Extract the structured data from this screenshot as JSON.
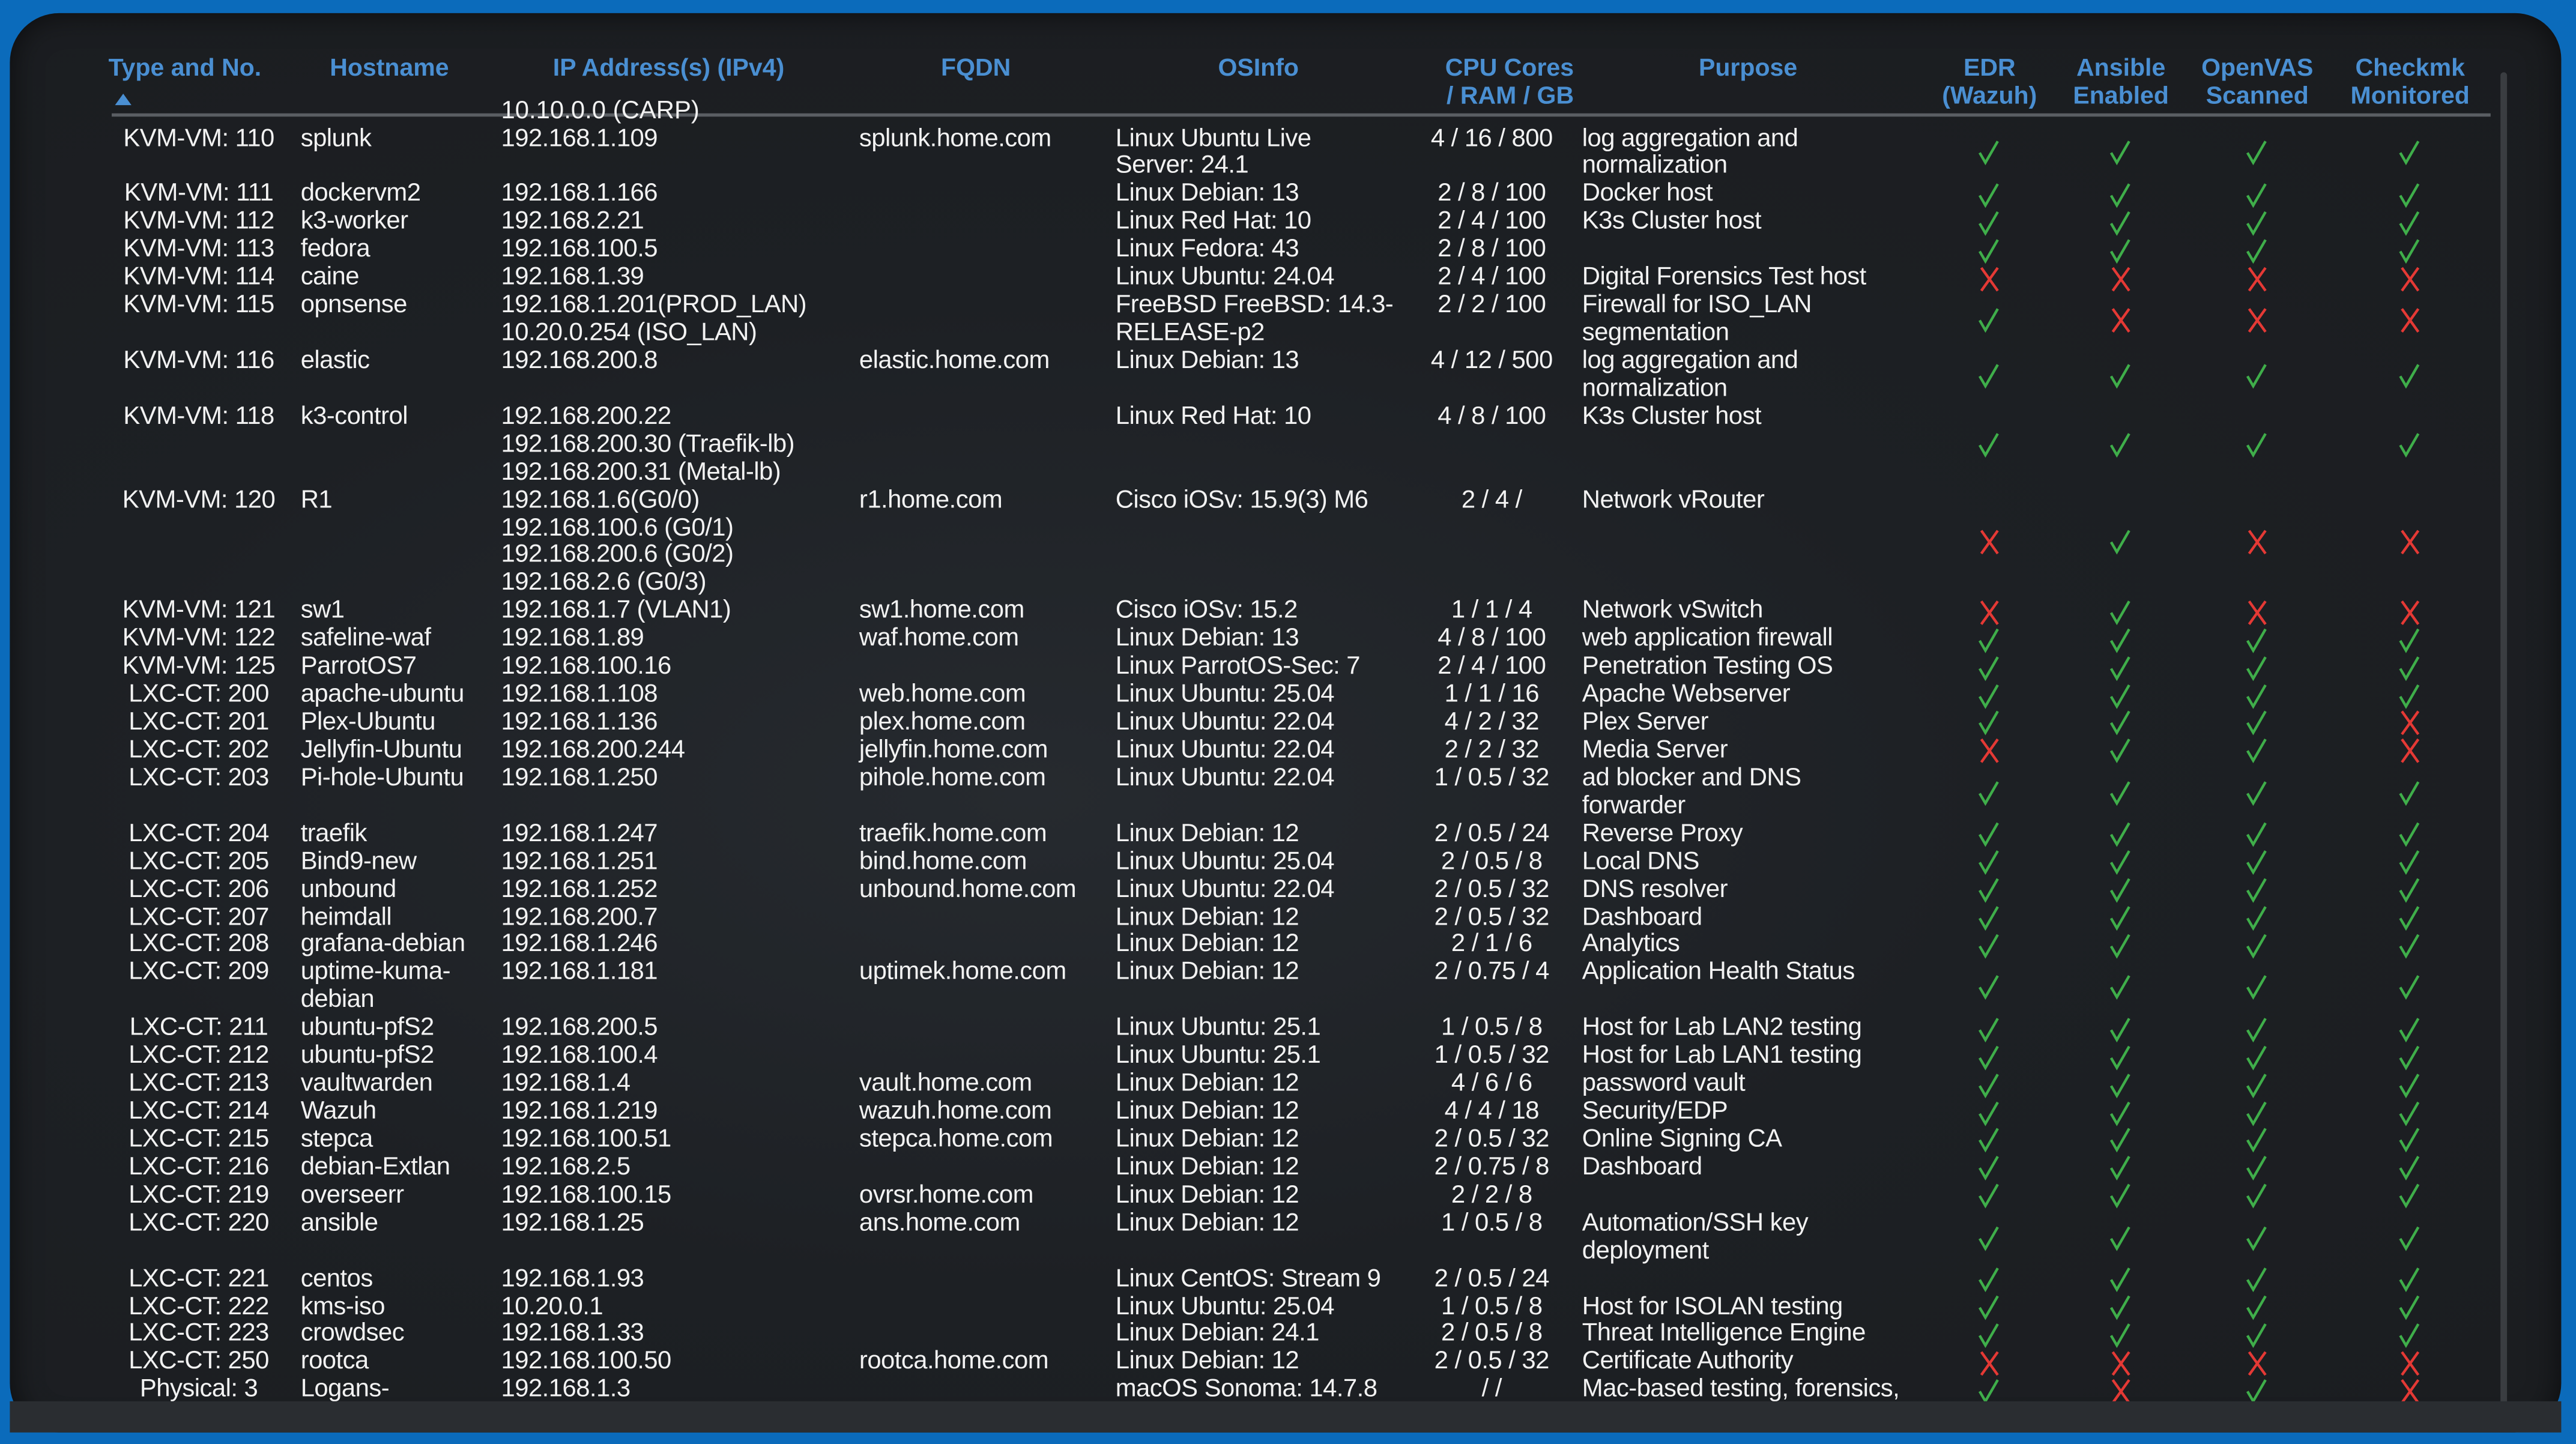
{
  "colors": {
    "frame": "#0b6bbb",
    "header_text": "#4a8fd2",
    "check": "#3fae4a",
    "cross": "#e53935",
    "cell_text": "#f2f2f2"
  },
  "icons": {
    "sort": "sort-ascending-icon",
    "yes": "check-icon",
    "no": "x-icon"
  },
  "headers": {
    "type": "Type and No.",
    "hostname": "Hostname",
    "ip": "IP Address(s) (IPv4)",
    "fqdn": "FQDN",
    "os": "OSInfo",
    "cpu": [
      "CPU Cores",
      "/ RAM / GB"
    ],
    "purpose": "Purpose",
    "edr": [
      "EDR",
      "(Wazuh)"
    ],
    "ansible": [
      "Ansible",
      "Enabled"
    ],
    "openvas": [
      "OpenVAS",
      "Scanned"
    ],
    "checkmk": [
      "Checkmk",
      "Monitored"
    ]
  },
  "clipped_top_text": "10.10.0.0 (CARP)",
  "rows": [
    {
      "type": "KVM-VM: 110",
      "host": [
        "splunk"
      ],
      "ip": [
        "192.168.1.109"
      ],
      "fqdn": "splunk.home.com",
      "os": [
        "Linux Ubuntu Live",
        "Server: 24.1"
      ],
      "cpu": "4 / 16 / 800",
      "purpose": [
        "log aggregation and",
        "normalization"
      ],
      "edr": true,
      "ansible": true,
      "openvas": true,
      "checkmk": true
    },
    {
      "type": "KVM-VM: 111",
      "host": [
        "dockervm2"
      ],
      "ip": [
        "192.168.1.166"
      ],
      "fqdn": "",
      "os": [
        "Linux Debian: 13"
      ],
      "cpu": "2 / 8 / 100",
      "purpose": [
        "Docker host"
      ],
      "edr": true,
      "ansible": true,
      "openvas": true,
      "checkmk": true
    },
    {
      "type": "KVM-VM: 112",
      "host": [
        "k3-worker"
      ],
      "ip": [
        "192.168.2.21"
      ],
      "fqdn": "",
      "os": [
        "Linux Red Hat: 10"
      ],
      "cpu": "2 / 4 / 100",
      "purpose": [
        "K3s Cluster host"
      ],
      "edr": true,
      "ansible": true,
      "openvas": true,
      "checkmk": true
    },
    {
      "type": "KVM-VM: 113",
      "host": [
        "fedora"
      ],
      "ip": [
        "192.168.100.5"
      ],
      "fqdn": "",
      "os": [
        "Linux Fedora: 43"
      ],
      "cpu": "2 / 8 / 100",
      "purpose": [
        ""
      ],
      "edr": true,
      "ansible": true,
      "openvas": true,
      "checkmk": true
    },
    {
      "type": "KVM-VM: 114",
      "host": [
        "caine"
      ],
      "ip": [
        "192.168.1.39"
      ],
      "fqdn": "",
      "os": [
        "Linux Ubuntu: 24.04"
      ],
      "cpu": "2 / 4 / 100",
      "purpose": [
        "Digital Forensics Test host"
      ],
      "edr": false,
      "ansible": false,
      "openvas": false,
      "checkmk": false
    },
    {
      "type": "KVM-VM: 115",
      "host": [
        "opnsense"
      ],
      "ip": [
        "192.168.1.201(PROD_LAN)",
        "10.20.0.254 (ISO_LAN)"
      ],
      "fqdn": "",
      "os": [
        "FreeBSD FreeBSD: 14.3-",
        "RELEASE-p2"
      ],
      "cpu": "2 / 2 / 100",
      "purpose": [
        "Firewall for ISO_LAN",
        "segmentation"
      ],
      "edr": true,
      "ansible": false,
      "openvas": false,
      "checkmk": false
    },
    {
      "type": "KVM-VM: 116",
      "host": [
        "elastic"
      ],
      "ip": [
        "192.168.200.8"
      ],
      "fqdn": "elastic.home.com",
      "os": [
        "Linux Debian: 13"
      ],
      "cpu": "4 / 12 / 500",
      "purpose": [
        "log aggregation and",
        "normalization"
      ],
      "edr": true,
      "ansible": true,
      "openvas": true,
      "checkmk": true
    },
    {
      "type": "KVM-VM: 118",
      "host": [
        "k3-control"
      ],
      "ip": [
        "192.168.200.22",
        "192.168.200.30 (Traefik-lb)",
        "192.168.200.31 (Metal-lb)"
      ],
      "fqdn": "",
      "os": [
        "Linux Red Hat: 10"
      ],
      "cpu": "4 / 8 / 100",
      "purpose": [
        "K3s Cluster host"
      ],
      "edr": true,
      "ansible": true,
      "openvas": true,
      "checkmk": true
    },
    {
      "type": "KVM-VM: 120",
      "host": [
        "R1"
      ],
      "ip": [
        "192.168.1.6(G0/0)",
        "192.168.100.6 (G0/1)",
        "192.168.200.6 (G0/2)",
        "192.168.2.6 (G0/3)"
      ],
      "fqdn": "r1.home.com",
      "os": [
        "Cisco iOSv: 15.9(3) M6"
      ],
      "cpu": "2 / 4 /",
      "purpose": [
        "Network vRouter"
      ],
      "edr": false,
      "ansible": true,
      "openvas": false,
      "checkmk": false
    },
    {
      "type": "KVM-VM: 121",
      "host": [
        "sw1"
      ],
      "ip": [
        "192.168.1.7 (VLAN1)"
      ],
      "fqdn": "sw1.home.com",
      "os": [
        "Cisco iOSv: 15.2"
      ],
      "cpu": "1 / 1 / 4",
      "purpose": [
        "Network vSwitch"
      ],
      "edr": false,
      "ansible": true,
      "openvas": false,
      "checkmk": false
    },
    {
      "type": "KVM-VM: 122",
      "host": [
        "safeline-waf"
      ],
      "ip": [
        "192.168.1.89"
      ],
      "fqdn": "waf.home.com",
      "os": [
        "Linux Debian: 13"
      ],
      "cpu": "4 / 8 / 100",
      "purpose": [
        "web application firewall"
      ],
      "edr": true,
      "ansible": true,
      "openvas": true,
      "checkmk": true
    },
    {
      "type": "KVM-VM: 125",
      "host": [
        "ParrotOS7"
      ],
      "ip": [
        "192.168.100.16"
      ],
      "fqdn": "",
      "os": [
        "Linux ParrotOS-Sec: 7"
      ],
      "cpu": "2 / 4 / 100",
      "purpose": [
        "Penetration Testing OS"
      ],
      "edr": true,
      "ansible": true,
      "openvas": true,
      "checkmk": true
    },
    {
      "type": "LXC-CT: 200",
      "host": [
        "apache-ubuntu"
      ],
      "ip": [
        "192.168.1.108"
      ],
      "fqdn": "web.home.com",
      "os": [
        "Linux Ubuntu: 25.04"
      ],
      "cpu": "1 / 1 / 16",
      "purpose": [
        "Apache Webserver"
      ],
      "edr": true,
      "ansible": true,
      "openvas": true,
      "checkmk": true
    },
    {
      "type": "LXC-CT: 201",
      "host": [
        "Plex-Ubuntu"
      ],
      "ip": [
        "192.168.1.136"
      ],
      "fqdn": "plex.home.com",
      "os": [
        "Linux Ubuntu: 22.04"
      ],
      "cpu": "4 / 2 / 32",
      "purpose": [
        "Plex Server"
      ],
      "edr": true,
      "ansible": true,
      "openvas": true,
      "checkmk": false
    },
    {
      "type": "LXC-CT: 202",
      "host": [
        "Jellyfin-Ubuntu"
      ],
      "ip": [
        "192.168.200.244"
      ],
      "fqdn": "jellyfin.home.com",
      "os": [
        "Linux Ubuntu: 22.04"
      ],
      "cpu": "2 / 2 / 32",
      "purpose": [
        "Media Server"
      ],
      "edr": false,
      "ansible": true,
      "openvas": true,
      "checkmk": false
    },
    {
      "type": "LXC-CT: 203",
      "host": [
        "Pi-hole-Ubuntu"
      ],
      "ip": [
        "192.168.1.250"
      ],
      "fqdn": "pihole.home.com",
      "os": [
        "Linux Ubuntu: 22.04"
      ],
      "cpu": "1 / 0.5 / 32",
      "purpose": [
        "ad blocker and DNS",
        "forwarder"
      ],
      "edr": true,
      "ansible": true,
      "openvas": true,
      "checkmk": true
    },
    {
      "type": "LXC-CT: 204",
      "host": [
        "traefik"
      ],
      "ip": [
        "192.168.1.247"
      ],
      "fqdn": "traefik.home.com",
      "os": [
        "Linux Debian: 12"
      ],
      "cpu": "2 / 0.5 / 24",
      "purpose": [
        "Reverse Proxy"
      ],
      "edr": true,
      "ansible": true,
      "openvas": true,
      "checkmk": true
    },
    {
      "type": "LXC-CT: 205",
      "host": [
        "Bind9-new"
      ],
      "ip": [
        "192.168.1.251"
      ],
      "fqdn": "bind.home.com",
      "os": [
        "Linux Ubuntu: 25.04"
      ],
      "cpu": "2 / 0.5 / 8",
      "purpose": [
        "Local DNS"
      ],
      "edr": true,
      "ansible": true,
      "openvas": true,
      "checkmk": true
    },
    {
      "type": "LXC-CT: 206",
      "host": [
        "unbound"
      ],
      "ip": [
        "192.168.1.252"
      ],
      "fqdn": "unbound.home.com",
      "os": [
        "Linux Ubuntu: 22.04"
      ],
      "cpu": "2 / 0.5 / 32",
      "purpose": [
        "DNS resolver"
      ],
      "edr": true,
      "ansible": true,
      "openvas": true,
      "checkmk": true
    },
    {
      "type": "LXC-CT: 207",
      "host": [
        "heimdall"
      ],
      "ip": [
        "192.168.200.7"
      ],
      "fqdn": "",
      "os": [
        "Linux Debian: 12"
      ],
      "cpu": "2 / 0.5 / 32",
      "purpose": [
        "Dashboard"
      ],
      "edr": true,
      "ansible": true,
      "openvas": true,
      "checkmk": true
    },
    {
      "type": "LXC-CT: 208",
      "host": [
        "grafana-debian"
      ],
      "ip": [
        "192.168.1.246"
      ],
      "fqdn": "",
      "os": [
        "Linux Debian: 12"
      ],
      "cpu": "2 / 1 / 6",
      "purpose": [
        "Analytics"
      ],
      "edr": true,
      "ansible": true,
      "openvas": true,
      "checkmk": true
    },
    {
      "type": "LXC-CT: 209",
      "host": [
        "uptime-kuma-",
        "debian"
      ],
      "ip": [
        "192.168.1.181"
      ],
      "fqdn": "uptimek.home.com",
      "os": [
        "Linux Debian: 12"
      ],
      "cpu": "2 / 0.75 / 4",
      "purpose": [
        "Application Health Status"
      ],
      "edr": true,
      "ansible": true,
      "openvas": true,
      "checkmk": true
    },
    {
      "type": "LXC-CT: 211",
      "host": [
        "ubuntu-pfS2"
      ],
      "ip": [
        "192.168.200.5"
      ],
      "fqdn": "",
      "os": [
        "Linux Ubuntu: 25.1"
      ],
      "cpu": "1 / 0.5 / 8",
      "purpose": [
        "Host for Lab LAN2 testing"
      ],
      "edr": true,
      "ansible": true,
      "openvas": true,
      "checkmk": true
    },
    {
      "type": "LXC-CT: 212",
      "host": [
        "ubuntu-pfS2"
      ],
      "ip": [
        "192.168.100.4"
      ],
      "fqdn": "",
      "os": [
        "Linux Ubuntu: 25.1"
      ],
      "cpu": "1 / 0.5 / 32",
      "purpose": [
        "Host for Lab LAN1 testing"
      ],
      "edr": true,
      "ansible": true,
      "openvas": true,
      "checkmk": true
    },
    {
      "type": "LXC-CT: 213",
      "host": [
        "vaultwarden"
      ],
      "ip": [
        "192.168.1.4"
      ],
      "fqdn": "vault.home.com",
      "os": [
        "Linux Debian: 12"
      ],
      "cpu": "4 / 6 / 6",
      "purpose": [
        "password vault"
      ],
      "edr": true,
      "ansible": true,
      "openvas": true,
      "checkmk": true
    },
    {
      "type": "LXC-CT: 214",
      "host": [
        "Wazuh"
      ],
      "ip": [
        "192.168.1.219"
      ],
      "fqdn": "wazuh.home.com",
      "os": [
        "Linux Debian: 12"
      ],
      "cpu": "4 / 4 / 18",
      "purpose": [
        "Security/EDP"
      ],
      "edr": true,
      "ansible": true,
      "openvas": true,
      "checkmk": true
    },
    {
      "type": "LXC-CT: 215",
      "host": [
        "stepca"
      ],
      "ip": [
        "192.168.100.51"
      ],
      "fqdn": "stepca.home.com",
      "os": [
        "Linux Debian: 12"
      ],
      "cpu": "2 / 0.5 / 32",
      "purpose": [
        "Online Signing CA"
      ],
      "edr": true,
      "ansible": true,
      "openvas": true,
      "checkmk": true
    },
    {
      "type": "LXC-CT: 216",
      "host": [
        "debian-Extlan"
      ],
      "ip": [
        "192.168.2.5"
      ],
      "fqdn": "",
      "os": [
        "Linux Debian: 12"
      ],
      "cpu": "2 / 0.75 / 8",
      "purpose": [
        "Dashboard"
      ],
      "edr": true,
      "ansible": true,
      "openvas": true,
      "checkmk": true
    },
    {
      "type": "LXC-CT: 219",
      "host": [
        "overseerr"
      ],
      "ip": [
        "192.168.100.15"
      ],
      "fqdn": "ovrsr.home.com",
      "os": [
        "Linux Debian: 12"
      ],
      "cpu": "2 / 2 / 8",
      "purpose": [
        ""
      ],
      "edr": true,
      "ansible": true,
      "openvas": true,
      "checkmk": true
    },
    {
      "type": "LXC-CT: 220",
      "host": [
        "ansible"
      ],
      "ip": [
        "192.168.1.25"
      ],
      "fqdn": "ans.home.com",
      "os": [
        "Linux Debian: 12"
      ],
      "cpu": "1 / 0.5 / 8",
      "purpose": [
        "Automation/SSH key",
        "deployment"
      ],
      "edr": true,
      "ansible": true,
      "openvas": true,
      "checkmk": true
    },
    {
      "type": "LXC-CT: 221",
      "host": [
        "centos"
      ],
      "ip": [
        "192.168.1.93"
      ],
      "fqdn": "",
      "os": [
        "Linux CentOS: Stream 9"
      ],
      "cpu": "2 / 0.5 / 24",
      "purpose": [
        ""
      ],
      "edr": true,
      "ansible": true,
      "openvas": true,
      "checkmk": true
    },
    {
      "type": "LXC-CT: 222",
      "host": [
        "kms-iso"
      ],
      "ip": [
        "10.20.0.1"
      ],
      "fqdn": "",
      "os": [
        "Linux Ubuntu: 25.04"
      ],
      "cpu": "1 / 0.5 / 8",
      "purpose": [
        "Host for ISOLAN testing"
      ],
      "edr": true,
      "ansible": true,
      "openvas": true,
      "checkmk": true
    },
    {
      "type": "LXC-CT: 223",
      "host": [
        "crowdsec"
      ],
      "ip": [
        "192.168.1.33"
      ],
      "fqdn": "",
      "os": [
        "Linux Debian: 24.1"
      ],
      "cpu": "2 / 0.5 / 8",
      "purpose": [
        "Threat Intelligence Engine"
      ],
      "edr": true,
      "ansible": true,
      "openvas": true,
      "checkmk": true
    },
    {
      "type": "LXC-CT: 250",
      "host": [
        "rootca"
      ],
      "ip": [
        "192.168.100.50"
      ],
      "fqdn": "rootca.home.com",
      "os": [
        "Linux Debian: 12"
      ],
      "cpu": "2 / 0.5 / 32",
      "purpose": [
        "Certificate Authority"
      ],
      "edr": false,
      "ansible": false,
      "openvas": false,
      "checkmk": false
    },
    {
      "type": "Physical: 3",
      "host": [
        "Logans-"
      ],
      "ip": [
        "192.168.1.3"
      ],
      "fqdn": "",
      "os": [
        "macOS Sonoma: 14.7.8"
      ],
      "cpu": "/ /",
      "purpose": [
        "Mac-based testing, forensics,"
      ],
      "edr": true,
      "ansible": false,
      "openvas": true,
      "checkmk": false
    }
  ]
}
